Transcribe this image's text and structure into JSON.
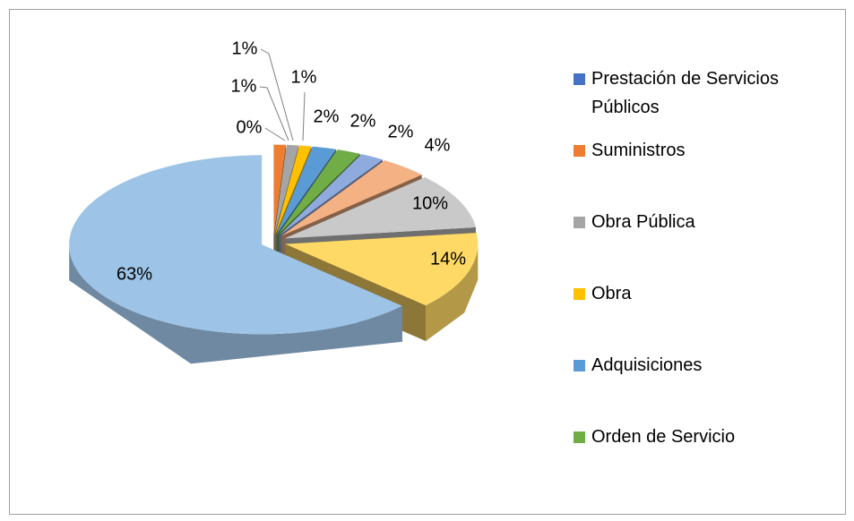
{
  "chart_data": {
    "type": "pie",
    "view": "3d-exploded",
    "categories": [
      "Prestación de Servicios Públicos",
      "Suministros",
      "Obra Pública",
      "Obra",
      "Adquisiciones",
      "Orden de Servicio",
      null,
      null,
      null,
      null,
      null
    ],
    "values": [
      0,
      1,
      1,
      1,
      2,
      2,
      2,
      4,
      10,
      14,
      63
    ],
    "value_labels": [
      "0%",
      "1%",
      "1%",
      "1%",
      "2%",
      "2%",
      "2%",
      "4%",
      "10%",
      "14%",
      "63%"
    ],
    "colors": [
      "#4472c4",
      "#ed7d31",
      "#a5a5a5",
      "#ffc000",
      "#5b9bd5",
      "#70ad47",
      "#8faadc",
      "#f4b183",
      "#c9c9c9",
      "#ffd966",
      "#9dc3e6"
    ],
    "legend": "right"
  }
}
